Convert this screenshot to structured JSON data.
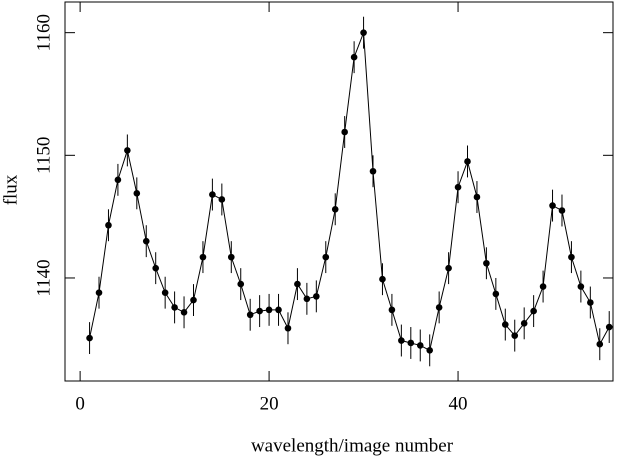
{
  "chart_data": {
    "type": "scatter",
    "xlabel": "wavelength/image number",
    "ylabel": "flux",
    "x": [
      1,
      2,
      3,
      4,
      5,
      6,
      7,
      8,
      9,
      10,
      11,
      12,
      13,
      14,
      15,
      16,
      17,
      18,
      19,
      20,
      21,
      22,
      23,
      24,
      25,
      26,
      27,
      28,
      29,
      30,
      31,
      32,
      33,
      34,
      35,
      36,
      37,
      38,
      39,
      40,
      41,
      42,
      43,
      44,
      45,
      46,
      47,
      48,
      49,
      50,
      51,
      52,
      53,
      54,
      55,
      56
    ],
    "series": [
      {
        "color": "#000000",
        "values": [
          1135.1,
          1138.8,
          1144.3,
          1148.0,
          1150.4,
          1146.9,
          1143.0,
          1140.8,
          1138.8,
          1137.6,
          1137.2,
          1138.2,
          1141.7,
          1146.8,
          1146.4,
          1141.7,
          1139.5,
          1137.0,
          1137.3,
          1137.4,
          1137.4,
          1135.9,
          1139.5,
          1138.3,
          1138.5,
          1141.7,
          1145.6,
          1151.9,
          1158.0,
          1160.0,
          1148.7,
          1139.9,
          1137.4,
          1134.9,
          1134.7,
          1134.5,
          1134.1,
          1137.6,
          1140.8,
          1147.4,
          1149.5,
          1146.6,
          1141.2,
          1138.7,
          1136.2,
          1135.3,
          1136.3,
          1137.3,
          1139.3,
          1145.9,
          1145.5,
          1141.7,
          1139.3,
          1138.0,
          1134.6,
          1136.0
        ]
      }
    ],
    "error": 1.3,
    "xlim": [
      -1.6,
      56.4
    ],
    "xticks": [
      0,
      20,
      40
    ],
    "ylim": [
      1131.6,
      1162.5
    ],
    "yticks": [
      1140,
      1150,
      1160
    ]
  }
}
